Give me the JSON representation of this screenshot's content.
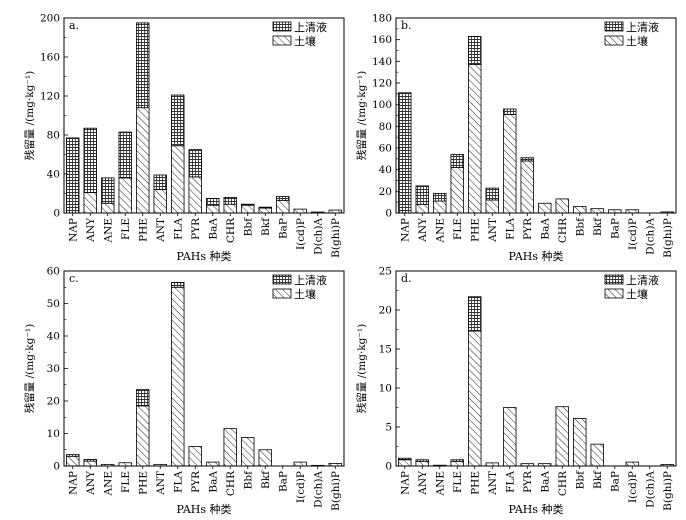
{
  "chart_data": [
    {
      "type": "bar",
      "panel": "a.",
      "ylabel": "残留量 /(mg·kg⁻¹)",
      "xlabel": "PAHs 种类",
      "ylim": [
        0,
        200
      ],
      "yticks": [
        0,
        40,
        80,
        120,
        160,
        200
      ],
      "categories": [
        "NAP",
        "ANY",
        "ANE",
        "FLE",
        "PHE",
        "ANT",
        "FLA",
        "PYR",
        "BaA",
        "CHR",
        "Bbf",
        "Bkf",
        "BaP",
        "I(cd)P",
        "D(ch)A",
        "B(ghi)P"
      ],
      "series": [
        {
          "name": "土壤",
          "values": [
            0,
            21,
            10,
            36,
            108,
            24,
            69,
            37,
            8,
            9,
            8,
            5,
            13,
            4,
            1,
            3
          ]
        },
        {
          "name": "上清液",
          "values": [
            77,
            66,
            26,
            47,
            87,
            15,
            52,
            28,
            7,
            7,
            1,
            1,
            4,
            0,
            0,
            0
          ]
        }
      ]
    },
    {
      "type": "bar",
      "panel": "b.",
      "ylabel": "残留量 /(mg·kg⁻¹)",
      "xlabel": "PAHs 种类",
      "ylim": [
        0,
        180
      ],
      "yticks": [
        0,
        20,
        40,
        60,
        80,
        100,
        120,
        140,
        160,
        180
      ],
      "categories": [
        "NAP",
        "ANY",
        "ANE",
        "FLE",
        "PHE",
        "ANT",
        "FLA",
        "PYR",
        "BaA",
        "CHR",
        "Bbf",
        "Bkf",
        "BaP",
        "I(cd)P",
        "D(ch)A",
        "B(ghi)P"
      ],
      "series": [
        {
          "name": "土壤",
          "values": [
            0,
            8,
            11,
            42,
            137,
            12,
            91,
            48,
            9,
            13,
            6,
            4,
            3,
            3,
            0,
            1
          ]
        },
        {
          "name": "上清液",
          "values": [
            111,
            17,
            7,
            12,
            26,
            11,
            5,
            3,
            0,
            0,
            0,
            0,
            0,
            0,
            0,
            0
          ]
        }
      ]
    },
    {
      "type": "bar",
      "panel": "c.",
      "ylabel": "残留量 /(mg·kg⁻¹)",
      "xlabel": "PAHs 种类",
      "ylim": [
        0,
        60
      ],
      "yticks": [
        0,
        10,
        20,
        30,
        40,
        50,
        60
      ],
      "categories": [
        "NAP",
        "ANY",
        "ANE",
        "FLE",
        "PHE",
        "ANT",
        "FLA",
        "PYR",
        "BaA",
        "CHR",
        "Bbf",
        "Bkf",
        "BaP",
        "I(cd)P",
        "D(ch)A",
        "B(ghi)P"
      ],
      "series": [
        {
          "name": "土壤",
          "values": [
            3,
            1.5,
            0.5,
            1,
            18.5,
            0.5,
            55,
            6,
            1.2,
            11.5,
            8.8,
            5,
            0,
            1.2,
            0.2,
            0.8
          ]
        },
        {
          "name": "上清液",
          "values": [
            0.5,
            0.5,
            0,
            0,
            5,
            0,
            1.5,
            0,
            0,
            0,
            0,
            0,
            0,
            0,
            0,
            0
          ]
        }
      ]
    },
    {
      "type": "bar",
      "panel": "d.",
      "ylabel": "残留量 /(mg·kg⁻¹)",
      "xlabel": "PAHs 种类",
      "ylim": [
        0,
        25
      ],
      "yticks": [
        0,
        5,
        10,
        15,
        20,
        25
      ],
      "categories": [
        "NAP",
        "ANY",
        "ANE",
        "FLE",
        "PHE",
        "ANT",
        "FLA",
        "PYR",
        "BaA",
        "CHR",
        "Bbf",
        "Bkf",
        "BaP",
        "I(cd)P",
        "D(ch)A",
        "B(ghi)P"
      ],
      "series": [
        {
          "name": "土壤",
          "values": [
            0.8,
            0.6,
            0.1,
            0.6,
            17.3,
            0.4,
            7.5,
            0.3,
            0.3,
            7.6,
            6.1,
            2.8,
            0,
            0.5,
            0,
            0.2
          ]
        },
        {
          "name": "上清液",
          "values": [
            0.2,
            0.2,
            0,
            0.2,
            4.4,
            0,
            0,
            0,
            0,
            0,
            0,
            0,
            0,
            0,
            0,
            0
          ]
        }
      ]
    }
  ]
}
